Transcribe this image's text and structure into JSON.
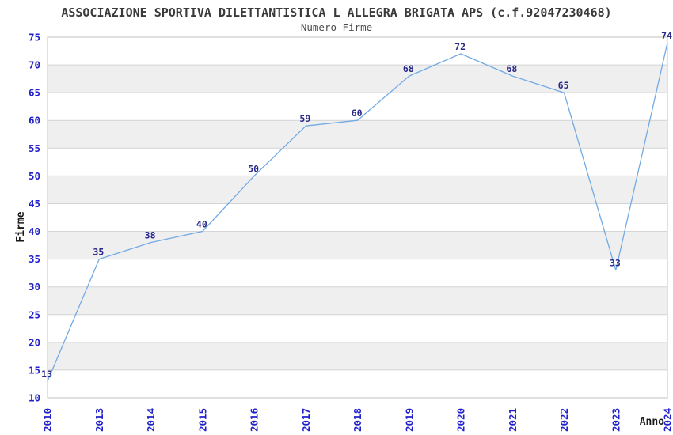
{
  "header": {
    "title": "ASSOCIAZIONE SPORTIVA DILETTANTISTICA L ALLEGRA BRIGATA APS (c.f.92047230468)",
    "subtitle": "Numero Firme"
  },
  "chart_data": {
    "type": "line",
    "title": "ASSOCIAZIONE SPORTIVA DILETTANTISTICA L ALLEGRA BRIGATA APS (c.f.92047230468)",
    "subtitle": "Numero Firme",
    "categories": [
      "2010",
      "2013",
      "2014",
      "2015",
      "2016",
      "2017",
      "2018",
      "2019",
      "2020",
      "2021",
      "2022",
      "2023",
      "2024"
    ],
    "values": [
      13,
      35,
      38,
      40,
      50,
      59,
      60,
      68,
      72,
      68,
      65,
      33,
      74
    ],
    "xlabel": "Anno",
    "ylabel": "Firme",
    "ylim": [
      10,
      75
    ],
    "ytick_step": 5,
    "grid": "horizontal-bands-alternating",
    "legend": "none",
    "point_markers": "none",
    "colors": {
      "line": "#72aae4",
      "tick_label": "#2222cc",
      "data_label": "#28288a",
      "band": "#efefef",
      "grid_line": "#d4d4d4",
      "frame": "#c0c0c0",
      "title_text": "#3a3a3a",
      "axis_label": "#1a1a1a",
      "background": "#ffffff"
    }
  }
}
